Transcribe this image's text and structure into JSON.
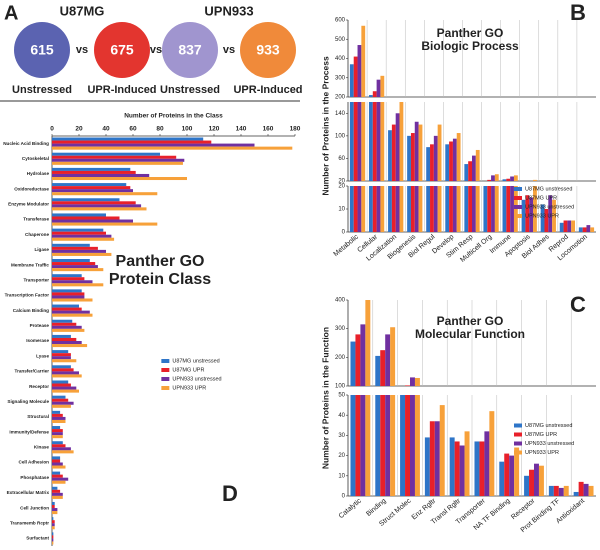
{
  "panel_a": {
    "panel": "A",
    "vs": "vs",
    "groups": [
      {
        "name": "U87MG",
        "circles": [
          {
            "value": 615,
            "label": "Unstressed",
            "color": "#5b63b1"
          },
          {
            "value": 675,
            "label": "UPR-Induced",
            "color": "#e3352f"
          }
        ]
      },
      {
        "name": "UPN933",
        "circles": [
          {
            "value": 837,
            "label": "Unstressed",
            "color": "#a095cf"
          },
          {
            "value": 933,
            "label": "UPR-Induced",
            "color": "#f08a3a"
          }
        ]
      }
    ]
  },
  "chart_data": [
    {
      "type": "broken-bar",
      "panel": "B",
      "title_lines": [
        "Panther GO",
        "Biologic Process"
      ],
      "ylabel": "Number of Proteins in the Process",
      "legend": "center-right",
      "categories": [
        "Metabolic",
        "Cellular",
        "Localization",
        "Biogenesis",
        "Biol Regul",
        "Develop",
        "Stim Resp",
        "Multicell Org",
        "Immune",
        "Apoptosis",
        "Biol Adhes",
        "Reprod",
        "Locomotion"
      ],
      "series": [
        {
          "name": "U87MG unstressed",
          "color": "#2e75c8",
          "values": [
            370,
            210,
            110,
            100,
            80,
            85,
            50,
            20,
            23,
            14,
            12,
            4,
            2
          ]
        },
        {
          "name": "U87MG UPR",
          "color": "#e8202a",
          "values": [
            410,
            230,
            120,
            105,
            85,
            90,
            55,
            22,
            24,
            16,
            10,
            5,
            2
          ]
        },
        {
          "name": "UPN933 unstressed",
          "color": "#7030a0",
          "values": [
            470,
            290,
            140,
            125,
            100,
            95,
            65,
            30,
            28,
            15,
            16,
            5,
            3
          ]
        },
        {
          "name": "UPN933 UPR",
          "color": "#f7a13a",
          "values": [
            570,
            310,
            160,
            120,
            120,
            105,
            75,
            32,
            30,
            22,
            14,
            5,
            2
          ]
        }
      ],
      "y_segments": [
        {
          "ylim": [
            0,
            20
          ],
          "yticks": [
            0,
            10,
            20
          ]
        },
        {
          "ylim": [
            20,
            160
          ],
          "yticks": [
            20,
            60,
            100,
            140
          ]
        },
        {
          "ylim": [
            200,
            600
          ],
          "yticks": [
            200,
            300,
            400,
            500,
            600
          ]
        }
      ]
    },
    {
      "type": "broken-bar",
      "panel": "C",
      "title_lines": [
        "Panther GO",
        "Molecular Function"
      ],
      "ylabel": "Number of Proteins in the Function",
      "legend": "center-right",
      "categories": [
        "Catalytic",
        "Binding",
        "Struct Molec",
        "Enz Rgltr",
        "Transl Rgltr",
        "Transporter",
        "NA TF Binding",
        "Receptor",
        "Prot Binding TF",
        "Antioxidant"
      ],
      "series": [
        {
          "name": "U87MG unstressed",
          "color": "#2e75c8",
          "values": [
            255,
            205,
            100,
            29,
            29,
            27,
            17,
            10,
            5,
            2
          ]
        },
        {
          "name": "U87MG UPR",
          "color": "#e8202a",
          "values": [
            280,
            225,
            102,
            37,
            27,
            27,
            21,
            13,
            5,
            7
          ]
        },
        {
          "name": "UPN933 unstressed",
          "color": "#7030a0",
          "values": [
            315,
            280,
            130,
            37,
            25,
            32,
            20,
            16,
            4,
            6
          ]
        },
        {
          "name": "UPN933 UPR",
          "color": "#f7a13a",
          "values": [
            400,
            305,
            128,
            45,
            32,
            42,
            24,
            15,
            5,
            5
          ]
        }
      ],
      "y_segments": [
        {
          "ylim": [
            0,
            50
          ],
          "yticks": [
            0,
            10,
            20,
            30,
            40,
            50
          ]
        },
        {
          "ylim": [
            100,
            400
          ],
          "yticks": [
            100,
            200,
            300,
            400
          ]
        }
      ]
    },
    {
      "type": "hbar",
      "panel": "D",
      "title_lines": [
        "Panther GO",
        "Protein Class"
      ],
      "xlabel": "Number of Proteins in the Class",
      "legend": "center",
      "xlim": [
        0,
        180
      ],
      "xticks": [
        0,
        20,
        40,
        60,
        80,
        100,
        120,
        140,
        160,
        180
      ],
      "categories": [
        "Nucleic Acid Binding",
        "Cytoskeletal",
        "Hydrolase",
        "Oxidoreductase",
        "Enzyme Modulator",
        "Transferase",
        "Chaperone",
        "Ligase",
        "Membrane Traffic",
        "Transporter",
        "Transcription Factor",
        "Calcium Binding",
        "Protease",
        "Isomerase",
        "Lyase",
        "Transfer/Carrier",
        "Receptor",
        "Signaling Molecule",
        "Structural",
        "Immunity/Defense",
        "Kinase",
        "Cell Adhesion",
        "Phosphatase",
        "Extracellular Matrix",
        "Cell Junction",
        "Transmemb Rcptr",
        "Surfactant"
      ],
      "series": [
        {
          "name": "U87MG unstressed",
          "color": "#2e75c8",
          "values": [
            112,
            80,
            58,
            55,
            50,
            40,
            38,
            28,
            28,
            22,
            22,
            20,
            15,
            14,
            12,
            14,
            12,
            10,
            6,
            6,
            8,
            6,
            6,
            4,
            2,
            1,
            1
          ]
        },
        {
          "name": "U87MG UPR",
          "color": "#e8202a",
          "values": [
            118,
            92,
            62,
            58,
            62,
            50,
            40,
            34,
            32,
            24,
            24,
            22,
            18,
            18,
            14,
            16,
            14,
            12,
            8,
            8,
            10,
            6,
            8,
            6,
            2,
            2,
            1
          ]
        },
        {
          "name": "UPN933 unstressed",
          "color": "#7030a0",
          "values": [
            150,
            98,
            72,
            60,
            66,
            60,
            44,
            40,
            34,
            30,
            24,
            28,
            22,
            22,
            14,
            20,
            18,
            16,
            10,
            8,
            14,
            8,
            12,
            8,
            4,
            2,
            1
          ]
        },
        {
          "name": "UPN933 UPR",
          "color": "#f7a13a",
          "values": [
            178,
            97,
            100,
            78,
            70,
            78,
            46,
            44,
            38,
            38,
            30,
            30,
            24,
            26,
            18,
            22,
            20,
            14,
            10,
            8,
            16,
            10,
            10,
            8,
            4,
            2,
            1
          ]
        }
      ]
    }
  ]
}
